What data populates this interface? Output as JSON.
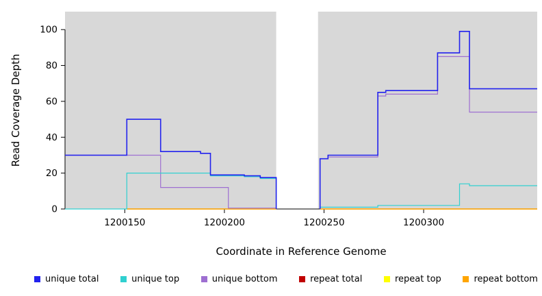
{
  "chart_data": {
    "type": "line",
    "title": "",
    "xlabel": "Coordinate in Reference Genome",
    "ylabel": "Read Coverage Depth",
    "xlim": [
      1200120,
      1200357
    ],
    "ylim": [
      0,
      110
    ],
    "x_ticks": [
      1200150,
      1200200,
      1200250,
      1200300
    ],
    "y_ticks": [
      0,
      20,
      40,
      60,
      80,
      100
    ],
    "grid": false,
    "background_color": "#d8d8d8",
    "gap_region": {
      "x0": 1200226,
      "x1": 1200247
    },
    "legend_position": "bottom",
    "legend": [
      {
        "label": "unique total",
        "color": "#2222ee"
      },
      {
        "label": "unique top",
        "color": "#30d0d0"
      },
      {
        "label": "unique bottom",
        "color": "#9e6fd1"
      },
      {
        "label": "repeat total",
        "color": "#c00000"
      },
      {
        "label": "repeat top",
        "color": "#ffff00"
      },
      {
        "label": "repeat bottom",
        "color": "#ffa500"
      }
    ],
    "series": [
      {
        "name": "repeat total",
        "color": "#c00000",
        "width": 1.2,
        "segments": [
          [
            [
              1200151,
              0
            ],
            [
              1200226,
              0
            ]
          ],
          [
            [
              1200248,
              0
            ],
            [
              1200357,
              0
            ]
          ]
        ]
      },
      {
        "name": "repeat top",
        "color": "#ffff00",
        "width": 1.2,
        "segments": [
          [
            [
              1200151,
              0
            ],
            [
              1200226,
              0
            ]
          ],
          [
            [
              1200248,
              0
            ],
            [
              1200357,
              0
            ]
          ]
        ]
      },
      {
        "name": "repeat bottom",
        "color": "#ffa500",
        "width": 1.2,
        "segments": [
          [
            [
              1200151,
              0
            ],
            [
              1200226,
              0
            ]
          ],
          [
            [
              1200248,
              0
            ],
            [
              1200357,
              0
            ]
          ]
        ]
      },
      {
        "name": "unique bottom",
        "color": "#9e6fd1",
        "width": 1.2,
        "segments": [
          [
            [
              1200120,
              30
            ],
            [
              1200168,
              30
            ],
            [
              1200168,
              12
            ],
            [
              1200202,
              12
            ],
            [
              1200202,
              0.5
            ],
            [
              1200226,
              0.5
            ],
            [
              1200226,
              0
            ]
          ],
          [
            [
              1200248,
              0
            ],
            [
              1200248,
              28
            ],
            [
              1200252,
              28
            ],
            [
              1200252,
              29
            ],
            [
              1200277,
              29
            ],
            [
              1200277,
              63
            ],
            [
              1200281,
              63
            ],
            [
              1200281,
              64
            ],
            [
              1200307,
              64
            ],
            [
              1200307,
              85
            ],
            [
              1200323,
              85
            ],
            [
              1200323,
              54
            ],
            [
              1200357,
              54
            ]
          ]
        ]
      },
      {
        "name": "unique top",
        "color": "#30d0d0",
        "width": 1.2,
        "segments": [
          [
            [
              1200120,
              0
            ],
            [
              1200151,
              0
            ],
            [
              1200151,
              20
            ],
            [
              1200193,
              20
            ],
            [
              1200193,
              18.5
            ],
            [
              1200210,
              18.5
            ],
            [
              1200210,
              18
            ],
            [
              1200218,
              18
            ],
            [
              1200218,
              17
            ],
            [
              1200226,
              17
            ],
            [
              1200226,
              0
            ]
          ],
          [
            [
              1200248,
              0
            ],
            [
              1200248,
              1
            ],
            [
              1200277,
              1
            ],
            [
              1200277,
              2
            ],
            [
              1200318,
              2
            ],
            [
              1200318,
              14
            ],
            [
              1200323,
              14
            ],
            [
              1200323,
              13
            ],
            [
              1200357,
              13
            ]
          ]
        ]
      },
      {
        "name": "unique total",
        "color": "#2222ee",
        "width": 1.6,
        "segments": [
          [
            [
              1200120,
              30
            ],
            [
              1200151,
              30
            ],
            [
              1200151,
              50
            ],
            [
              1200168,
              50
            ],
            [
              1200168,
              32
            ],
            [
              1200188,
              32
            ],
            [
              1200188,
              31
            ],
            [
              1200193,
              31
            ],
            [
              1200193,
              19
            ],
            [
              1200210,
              19
            ],
            [
              1200210,
              18.5
            ],
            [
              1200218,
              18.5
            ],
            [
              1200218,
              17.5
            ],
            [
              1200226,
              17.5
            ],
            [
              1200226,
              0
            ]
          ],
          [
            [
              1200248,
              0
            ],
            [
              1200248,
              28
            ],
            [
              1200252,
              28
            ],
            [
              1200252,
              30
            ],
            [
              1200277,
              30
            ],
            [
              1200277,
              65
            ],
            [
              1200281,
              65
            ],
            [
              1200281,
              66
            ],
            [
              1200307,
              66
            ],
            [
              1200307,
              87
            ],
            [
              1200318,
              87
            ],
            [
              1200318,
              99
            ],
            [
              1200323,
              99
            ],
            [
              1200323,
              67
            ],
            [
              1200357,
              67
            ]
          ]
        ]
      }
    ]
  }
}
